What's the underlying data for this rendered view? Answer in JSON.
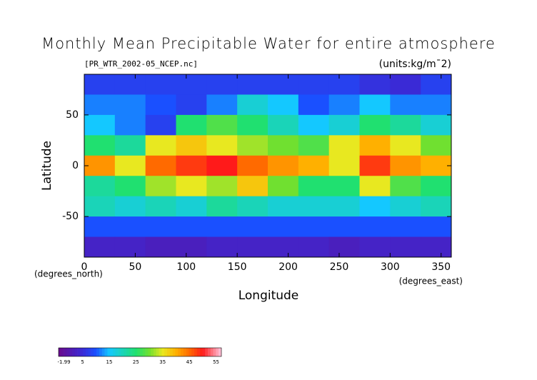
{
  "chart_data": {
    "type": "heatmap",
    "title": "Monthly Mean Precipitable Water for entire atmosphere",
    "subtitle": "[PR_WTR_2002-05_NCEP.nc]",
    "units": "(units:kg/m¯2)",
    "x_label": "Longitude",
    "y_label": "Latitude",
    "x_unit": "(degrees_east)",
    "y_unit": "(degrees_north)",
    "x": [
      15,
      45,
      75,
      105,
      135,
      165,
      195,
      225,
      255,
      285,
      315,
      345
    ],
    "y": [
      80,
      60,
      40,
      20,
      0,
      -20,
      -40,
      -60,
      -80
    ],
    "values": [
      [
        8,
        8,
        8,
        8,
        8,
        8,
        8,
        8,
        8,
        6,
        5,
        8
      ],
      [
        12,
        12,
        10,
        8,
        12,
        18,
        15,
        10,
        12,
        15,
        12,
        12
      ],
      [
        15,
        12,
        8,
        25,
        28,
        25,
        20,
        15,
        18,
        25,
        22,
        18
      ],
      [
        25,
        22,
        35,
        38,
        35,
        32,
        30,
        28,
        35,
        40,
        35,
        30
      ],
      [
        42,
        35,
        45,
        48,
        50,
        45,
        42,
        40,
        35,
        48,
        42,
        40
      ],
      [
        22,
        25,
        32,
        35,
        32,
        38,
        30,
        25,
        25,
        35,
        28,
        25
      ],
      [
        20,
        18,
        20,
        18,
        22,
        20,
        18,
        18,
        18,
        15,
        18,
        20
      ],
      [
        10,
        10,
        10,
        10,
        10,
        10,
        10,
        10,
        10,
        10,
        10,
        10
      ],
      [
        3,
        3,
        2,
        2,
        3,
        3,
        3,
        3,
        2,
        3,
        3,
        3
      ]
    ],
    "xlim": [
      0,
      360
    ],
    "ylim": [
      -90,
      90
    ],
    "xticks": [
      0,
      50,
      100,
      150,
      200,
      250,
      300,
      350
    ],
    "yticks": [
      50,
      0,
      -50
    ],
    "colorbar_lim": [
      -4,
      57
    ],
    "colorbar_ticks": [
      -1.99,
      5,
      15,
      25,
      35,
      45,
      55
    ],
    "colorscale": [
      [
        -4,
        "#6a0a8c"
      ],
      [
        5,
        "#3a2ad6"
      ],
      [
        10,
        "#1a50ff"
      ],
      [
        15,
        "#14c8ff"
      ],
      [
        25,
        "#20e070"
      ],
      [
        30,
        "#70e030"
      ],
      [
        35,
        "#e8e820"
      ],
      [
        40,
        "#ffb000"
      ],
      [
        45,
        "#ff6a00"
      ],
      [
        50,
        "#ff1a1a"
      ],
      [
        57,
        "#ffc8e0"
      ]
    ]
  }
}
